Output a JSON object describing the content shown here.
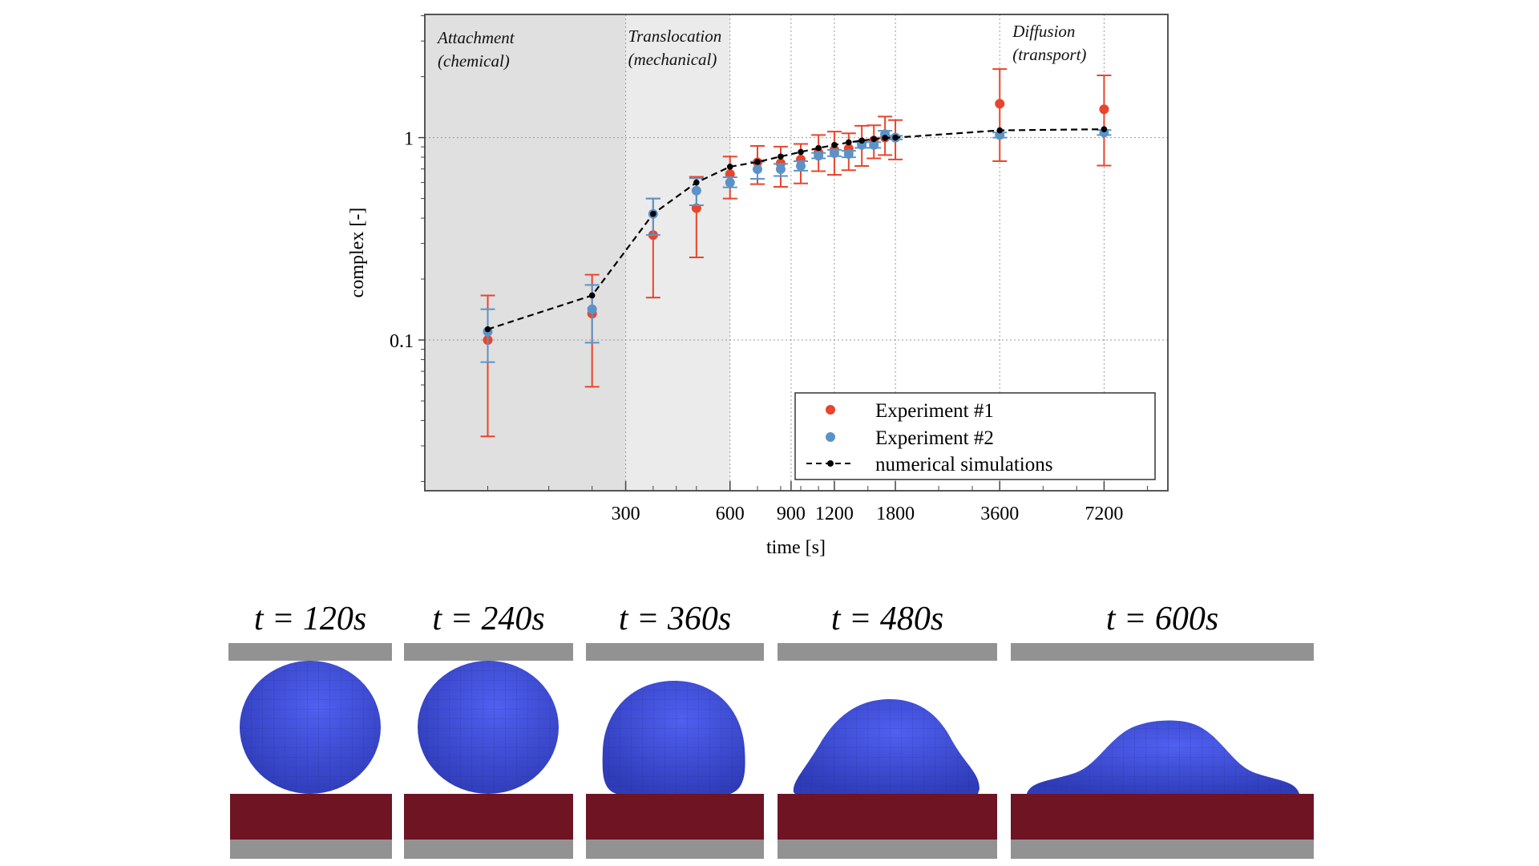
{
  "chart_data": {
    "type": "scatter",
    "title": "",
    "xlabel": "time [s]",
    "ylabel": "complex [-]",
    "xscale": "log",
    "yscale": "log",
    "xlim": [
      79,
      11000
    ],
    "ylim": [
      0.018,
      4.06
    ],
    "xticks": [
      300,
      600,
      900,
      1200,
      1800,
      3600,
      7200
    ],
    "xtick_labels": [
      "300",
      "600",
      "900",
      "1200",
      "1800",
      "3600",
      "7200"
    ],
    "yticks": [
      0.1,
      1
    ],
    "ytick_labels": [
      "0.1",
      "1"
    ],
    "grid": true,
    "legend_position": "bottom-right",
    "phases": [
      {
        "label_line1": "Attachment",
        "label_line2": "(chemical)",
        "x_start": 79,
        "x_end": 300,
        "color": "#e0e0e0"
      },
      {
        "label_line1": "Translocation",
        "label_line2": "(mechanical)",
        "x_start": 300,
        "x_end": 600,
        "color": "#ebebeb"
      },
      {
        "label_line1": "Diffusion",
        "label_line2": "(transport)",
        "x_start": 600,
        "x_end": 11000,
        "color": "#ffffff"
      }
    ],
    "series": [
      {
        "name": "Experiment #1",
        "kind": "errorbar",
        "color": "#e8452c",
        "x": [
          120,
          240,
          360,
          480,
          600,
          720,
          840,
          960,
          1080,
          1200,
          1320,
          1440,
          1560,
          1680,
          1800,
          3600,
          7200
        ],
        "y": [
          0.1,
          0.135,
          0.33,
          0.448,
          0.66,
          0.755,
          0.747,
          0.78,
          0.844,
          0.87,
          0.883,
          0.94,
          0.967,
          1.0,
          1.0,
          1.47,
          1.38
        ],
        "y_low": [
          0.0334,
          0.0587,
          0.162,
          0.256,
          0.5,
          0.589,
          0.571,
          0.594,
          0.682,
          0.655,
          0.69,
          0.724,
          0.79,
          0.82,
          0.78,
          0.765,
          0.727
        ],
        "y_high": [
          0.166,
          0.21,
          0.5,
          0.64,
          0.806,
          0.91,
          0.902,
          0.93,
          1.03,
          1.07,
          1.05,
          1.144,
          1.15,
          1.27,
          1.22,
          2.18,
          2.03
        ]
      },
      {
        "name": "Experiment #2",
        "kind": "errorbar",
        "color": "#5b93c7",
        "x": [
          120,
          240,
          360,
          480,
          600,
          720,
          840,
          960,
          1080,
          1200,
          1320,
          1440,
          1560,
          1680,
          1800,
          3600,
          7200
        ],
        "y": [
          0.11,
          0.142,
          0.42,
          0.547,
          0.6,
          0.698,
          0.698,
          0.724,
          0.813,
          0.838,
          0.83,
          0.92,
          0.92,
          1.04,
          1.0,
          1.03,
          1.06
        ],
        "y_low": [
          0.0777,
          0.097,
          0.33,
          0.463,
          0.568,
          0.626,
          0.646,
          0.686,
          0.79,
          0.81,
          0.8,
          0.89,
          0.89,
          1.0,
          0.98,
          1.0,
          1.03
        ],
        "y_high": [
          0.142,
          0.187,
          0.5,
          0.63,
          0.637,
          0.76,
          0.742,
          0.765,
          0.84,
          0.87,
          0.86,
          0.95,
          0.95,
          1.08,
          1.02,
          1.06,
          1.09
        ]
      },
      {
        "name": "numerical simulations",
        "kind": "dashed-line-markers",
        "color": "#000000",
        "x": [
          120,
          240,
          360,
          480,
          600,
          720,
          840,
          960,
          1080,
          1200,
          1320,
          1440,
          1560,
          1680,
          1800,
          3600,
          7200
        ],
        "y": [
          0.113,
          0.166,
          0.42,
          0.6,
          0.718,
          0.758,
          0.806,
          0.849,
          0.888,
          0.919,
          0.947,
          0.967,
          0.983,
          0.997,
          1.0,
          1.086,
          1.1
        ]
      }
    ]
  },
  "legend": {
    "items": [
      {
        "label": "Experiment #1",
        "color": "#e8452c",
        "marker": "dot"
      },
      {
        "label": "Experiment #2",
        "color": "#5b93c7",
        "marker": "dot"
      },
      {
        "label": "numerical simulations",
        "color": "#000000",
        "marker": "dashed-dot"
      }
    ]
  },
  "snapshots": {
    "colors": {
      "plate": "#929292",
      "substrate": "#6e1423",
      "cell": "#4050e0"
    },
    "panels": [
      {
        "label": "t = 120s",
        "time": 120
      },
      {
        "label": "t = 240s",
        "time": 240
      },
      {
        "label": "t = 360s",
        "time": 360
      },
      {
        "label": "t = 480s",
        "time": 480
      },
      {
        "label": "t = 600s",
        "time": 600
      }
    ]
  }
}
